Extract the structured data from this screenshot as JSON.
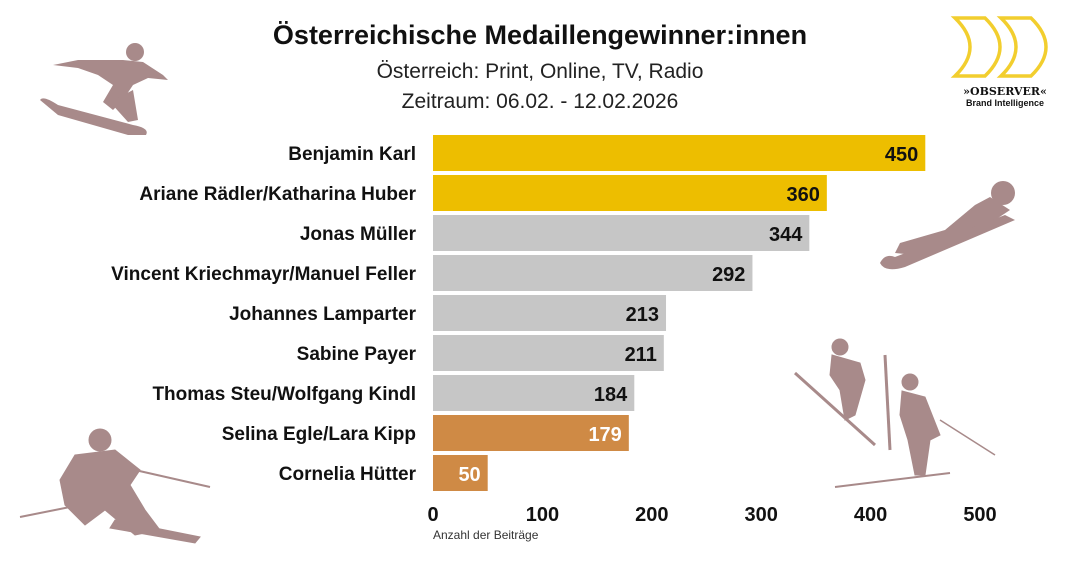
{
  "header": {
    "title": "Österreichische Medaillengewinner:innen",
    "subtitle": "Österreich: Print, Online, TV, Radio",
    "period": "Zeitraum: 06.02. - 12.02.2026"
  },
  "logo": {
    "name": "»OBSERVER«",
    "tagline": "Brand Intelligence"
  },
  "chart_data": {
    "type": "bar",
    "orientation": "horizontal",
    "title": "Österreichische Medaillengewinner:innen",
    "xlabel": "Anzahl der Beiträge",
    "ylabel": "",
    "xlim": [
      0,
      500
    ],
    "xticks": [
      0,
      100,
      200,
      300,
      400,
      500
    ],
    "categories": [
      "Benjamin Karl",
      "Ariane Rädler/Katharina Huber",
      "Jonas Müller",
      "Vincent Kriechmayr/Manuel Feller",
      "Johannes Lamparter",
      "Sabine Payer",
      "Thomas Steu/Wolfgang Kindl",
      "Selina Egle/Lara Kipp",
      "Cornelia Hütter"
    ],
    "values": [
      450,
      360,
      344,
      292,
      213,
      211,
      184,
      179,
      50
    ],
    "bar_colors": [
      "#EDBE00",
      "#EDBE00",
      "#C6C6C6",
      "#C6C6C6",
      "#C6C6C6",
      "#C6C6C6",
      "#C6C6C6",
      "#CF8A45",
      "#CF8A45"
    ],
    "label_colors": [
      "#111111",
      "#111111",
      "#111111",
      "#111111",
      "#111111",
      "#111111",
      "#111111",
      "#ffffff",
      "#ffffff"
    ],
    "grid": false,
    "legend": "none"
  },
  "colors": {
    "silhouette": "#A88A8A",
    "logo": "#F2CE2E"
  }
}
